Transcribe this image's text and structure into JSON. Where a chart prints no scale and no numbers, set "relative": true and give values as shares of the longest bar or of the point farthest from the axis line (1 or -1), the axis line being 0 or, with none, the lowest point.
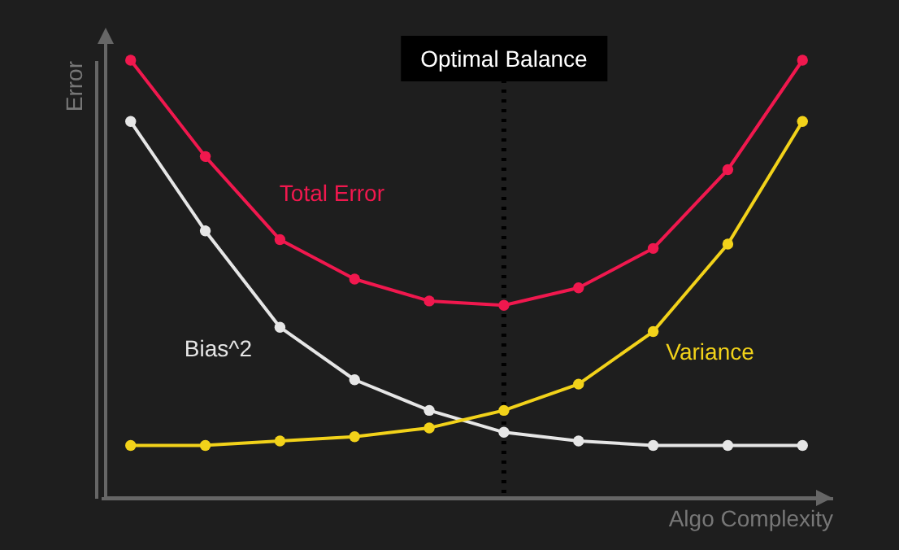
{
  "chart_data": {
    "type": "line",
    "relative": true,
    "xlabel": "Algo Complexity",
    "ylabel": "Error",
    "marker": "circle",
    "categories": [
      null,
      null,
      null,
      null,
      null,
      null,
      null,
      null,
      null,
      null
    ],
    "series": [
      {
        "name": "Total Error",
        "color": "#f0184e",
        "values": [
          1,
          0.78,
          0.59,
          0.5,
          0.45,
          0.44,
          0.48,
          0.57,
          0.75,
          1
        ]
      },
      {
        "name": "Bias^2",
        "color": "#e6e6e6",
        "values": [
          0.86,
          0.61,
          0.39,
          0.27,
          0.2,
          0.15,
          0.13,
          0.12,
          0.12,
          0.12
        ]
      },
      {
        "name": "Variance",
        "color": "#f2d21a",
        "values": [
          0.12,
          0.12,
          0.13,
          0.14,
          0.16,
          0.2,
          0.26,
          0.38,
          0.58,
          0.86
        ]
      }
    ],
    "annotations": [
      "Optimal Balance"
    ]
  }
}
